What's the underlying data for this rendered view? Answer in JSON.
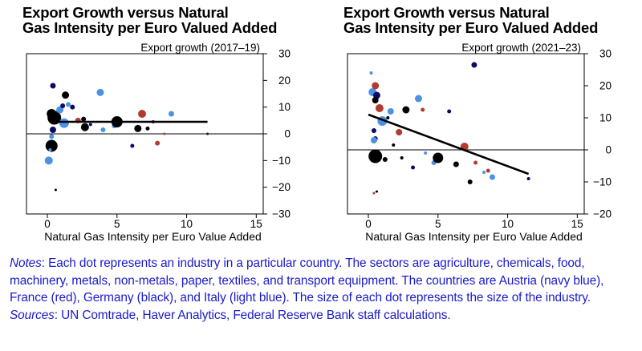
{
  "colors": {
    "austria": "#0b0b66",
    "france": "#b23b2e",
    "germany": "#000000",
    "italy": "#4a92e6",
    "notes_text": "#1a1acc"
  },
  "notes": {
    "notes_label": "Notes",
    "notes_text": ": Each dot represents an industry in a particular country. The sectors are agriculture, chemicals, food, machinery, metals, non-metals, paper, textiles, and transport equipment. The countries are Austria (navy blue), France (red), Germany (black), and Italy (light blue). The size of each dot represents the size of the industry.",
    "sources_label": "Sources",
    "sources_text": ": UN Comtrade, Haver Analytics, Federal Reserve Bank staff calculations."
  },
  "chart_data": [
    {
      "type": "scatter",
      "title_line1": "Export Growth versus Natural",
      "title_line2": "Gas Intensity per Euro Valued Added",
      "ylabel": "Export growth (2017–19)",
      "xlabel": "Natural Gas Intensity per Euro Value Added",
      "xlim": [
        -1.5,
        15.5
      ],
      "ylim": [
        -30,
        30
      ],
      "xticks": [
        0,
        5,
        10,
        15
      ],
      "yticks": [
        -30,
        -20,
        -10,
        0,
        10,
        20,
        30
      ],
      "ytick_labels": [
        "−30",
        "−20",
        "−10",
        "0",
        "10",
        "20",
        "30"
      ],
      "zero_line": true,
      "trendline": [
        [
          0.5,
          4.5
        ],
        [
          11.5,
          4.5
        ]
      ],
      "points": [
        {
          "x": 0.4,
          "y": 18,
          "c": "austria",
          "s": 3.5
        },
        {
          "x": 0.5,
          "y": 6,
          "c": "germany",
          "s": 8.5
        },
        {
          "x": 0.3,
          "y": 7.5,
          "c": "germany",
          "s": 6
        },
        {
          "x": 0.4,
          "y": 1.5,
          "c": "austria",
          "s": 4
        },
        {
          "x": 0.3,
          "y": -1,
          "c": "italy",
          "s": 3
        },
        {
          "x": 0.3,
          "y": -4.5,
          "c": "germany",
          "s": 7.5
        },
        {
          "x": 0.2,
          "y": -6,
          "c": "italy",
          "s": 2
        },
        {
          "x": 0.1,
          "y": -10,
          "c": "italy",
          "s": 5
        },
        {
          "x": 0.6,
          "y": -21,
          "c": "germany",
          "s": 1.5
        },
        {
          "x": 0.9,
          "y": 9,
          "c": "italy",
          "s": 4.5
        },
        {
          "x": 1.1,
          "y": 10.5,
          "c": "austria",
          "s": 3
        },
        {
          "x": 1.3,
          "y": 14.5,
          "c": "germany",
          "s": 4.5
        },
        {
          "x": 1.5,
          "y": 11,
          "c": "italy",
          "s": 3
        },
        {
          "x": 1.2,
          "y": 4,
          "c": "italy",
          "s": 6
        },
        {
          "x": 1.8,
          "y": 10,
          "c": "austria",
          "s": 3
        },
        {
          "x": 2.2,
          "y": 5,
          "c": "france",
          "s": 3.5
        },
        {
          "x": 2.6,
          "y": 5.5,
          "c": "germany",
          "s": 3
        },
        {
          "x": 2.7,
          "y": 2.5,
          "c": "germany",
          "s": 5
        },
        {
          "x": 3.1,
          "y": 3.5,
          "c": "austria",
          "s": 2
        },
        {
          "x": 3.8,
          "y": 15.5,
          "c": "italy",
          "s": 4.5
        },
        {
          "x": 4.0,
          "y": 1.5,
          "c": "italy",
          "s": 3
        },
        {
          "x": 4.8,
          "y": 3,
          "c": "italy",
          "s": 3
        },
        {
          "x": 5.0,
          "y": 4.5,
          "c": "germany",
          "s": 7
        },
        {
          "x": 6.1,
          "y": -4.5,
          "c": "austria",
          "s": 2.5
        },
        {
          "x": 6.5,
          "y": 2,
          "c": "germany",
          "s": 4.5
        },
        {
          "x": 6.8,
          "y": 7.5,
          "c": "france",
          "s": 5
        },
        {
          "x": 7.2,
          "y": 2,
          "c": "germany",
          "s": 2.5
        },
        {
          "x": 7.6,
          "y": 4.5,
          "c": "austria",
          "s": 2
        },
        {
          "x": 7.9,
          "y": -3.5,
          "c": "france",
          "s": 3
        },
        {
          "x": 8.4,
          "y": 0,
          "c": "france",
          "s": 1.5
        },
        {
          "x": 8.9,
          "y": 7.5,
          "c": "italy",
          "s": 3.5
        },
        {
          "x": 11.5,
          "y": 0,
          "c": "austria",
          "s": 1.5
        }
      ]
    },
    {
      "type": "scatter",
      "title_line1": "Export Growth versus Natural",
      "title_line2": "Gas Intensity per Euro Valued Added",
      "ylabel": "Export growth (2021–23)",
      "xlabel": "Natural Gas Intensity per Euro Value Added",
      "xlim": [
        -1.5,
        15.5
      ],
      "ylim": [
        -20,
        30
      ],
      "xticks": [
        0,
        5,
        10,
        15
      ],
      "yticks": [
        -20,
        -10,
        0,
        10,
        20,
        30
      ],
      "ytick_labels": [
        "−20",
        "−10",
        "0",
        "10",
        "20",
        "30"
      ],
      "zero_line": true,
      "trendline": [
        [
          0.0,
          11
        ],
        [
          11.5,
          -7.5
        ]
      ],
      "points": [
        {
          "x": 0.2,
          "y": 24,
          "c": "italy",
          "s": 2
        },
        {
          "x": 0.3,
          "y": 18,
          "c": "italy",
          "s": 5
        },
        {
          "x": 0.5,
          "y": 20,
          "c": "france",
          "s": 4.5
        },
        {
          "x": 0.6,
          "y": 17,
          "c": "austria",
          "s": 4.5
        },
        {
          "x": 0.5,
          "y": 15.5,
          "c": "germany",
          "s": 4
        },
        {
          "x": 0.8,
          "y": 13,
          "c": "france",
          "s": 5
        },
        {
          "x": 0.4,
          "y": 6,
          "c": "austria",
          "s": 3
        },
        {
          "x": 0.5,
          "y": 3.5,
          "c": "austria",
          "s": 3
        },
        {
          "x": 0.4,
          "y": 3,
          "c": "italy",
          "s": 4
        },
        {
          "x": 0.5,
          "y": -2,
          "c": "germany",
          "s": 8.5
        },
        {
          "x": 0.4,
          "y": -13.5,
          "c": "france",
          "s": 1.5
        },
        {
          "x": 0.6,
          "y": -13,
          "c": "germany",
          "s": 1.5
        },
        {
          "x": 1.0,
          "y": 9,
          "c": "italy",
          "s": 6
        },
        {
          "x": 1.4,
          "y": 10,
          "c": "germany",
          "s": 2
        },
        {
          "x": 1.6,
          "y": 12,
          "c": "italy",
          "s": 4
        },
        {
          "x": 1.2,
          "y": -3,
          "c": "germany",
          "s": 3
        },
        {
          "x": 1.8,
          "y": 1.5,
          "c": "germany",
          "s": 2
        },
        {
          "x": 2.2,
          "y": 5.5,
          "c": "france",
          "s": 4
        },
        {
          "x": 2.4,
          "y": -2.5,
          "c": "germany",
          "s": 2
        },
        {
          "x": 2.7,
          "y": 12.5,
          "c": "germany",
          "s": 4.5
        },
        {
          "x": 3.2,
          "y": -5.5,
          "c": "austria",
          "s": 2.5
        },
        {
          "x": 3.6,
          "y": 16,
          "c": "italy",
          "s": 4.5
        },
        {
          "x": 3.9,
          "y": 12.5,
          "c": "france",
          "s": 2.5
        },
        {
          "x": 4.1,
          "y": -1,
          "c": "italy",
          "s": 2
        },
        {
          "x": 4.7,
          "y": -4,
          "c": "italy",
          "s": 3
        },
        {
          "x": 5.0,
          "y": -2.5,
          "c": "germany",
          "s": 6.5
        },
        {
          "x": 5.8,
          "y": 12,
          "c": "austria",
          "s": 2.5
        },
        {
          "x": 6.3,
          "y": -4.5,
          "c": "germany",
          "s": 3.5
        },
        {
          "x": 6.9,
          "y": 1,
          "c": "france",
          "s": 5
        },
        {
          "x": 7.3,
          "y": -10,
          "c": "germany",
          "s": 3
        },
        {
          "x": 7.6,
          "y": 26.5,
          "c": "austria",
          "s": 3.5
        },
        {
          "x": 7.7,
          "y": -4,
          "c": "france",
          "s": 2.5
        },
        {
          "x": 8.3,
          "y": -7,
          "c": "italy",
          "s": 2
        },
        {
          "x": 8.6,
          "y": -6.5,
          "c": "france",
          "s": 2.5
        },
        {
          "x": 8.9,
          "y": -8.5,
          "c": "italy",
          "s": 3.5
        },
        {
          "x": 11.5,
          "y": -9,
          "c": "austria",
          "s": 2
        }
      ]
    }
  ]
}
